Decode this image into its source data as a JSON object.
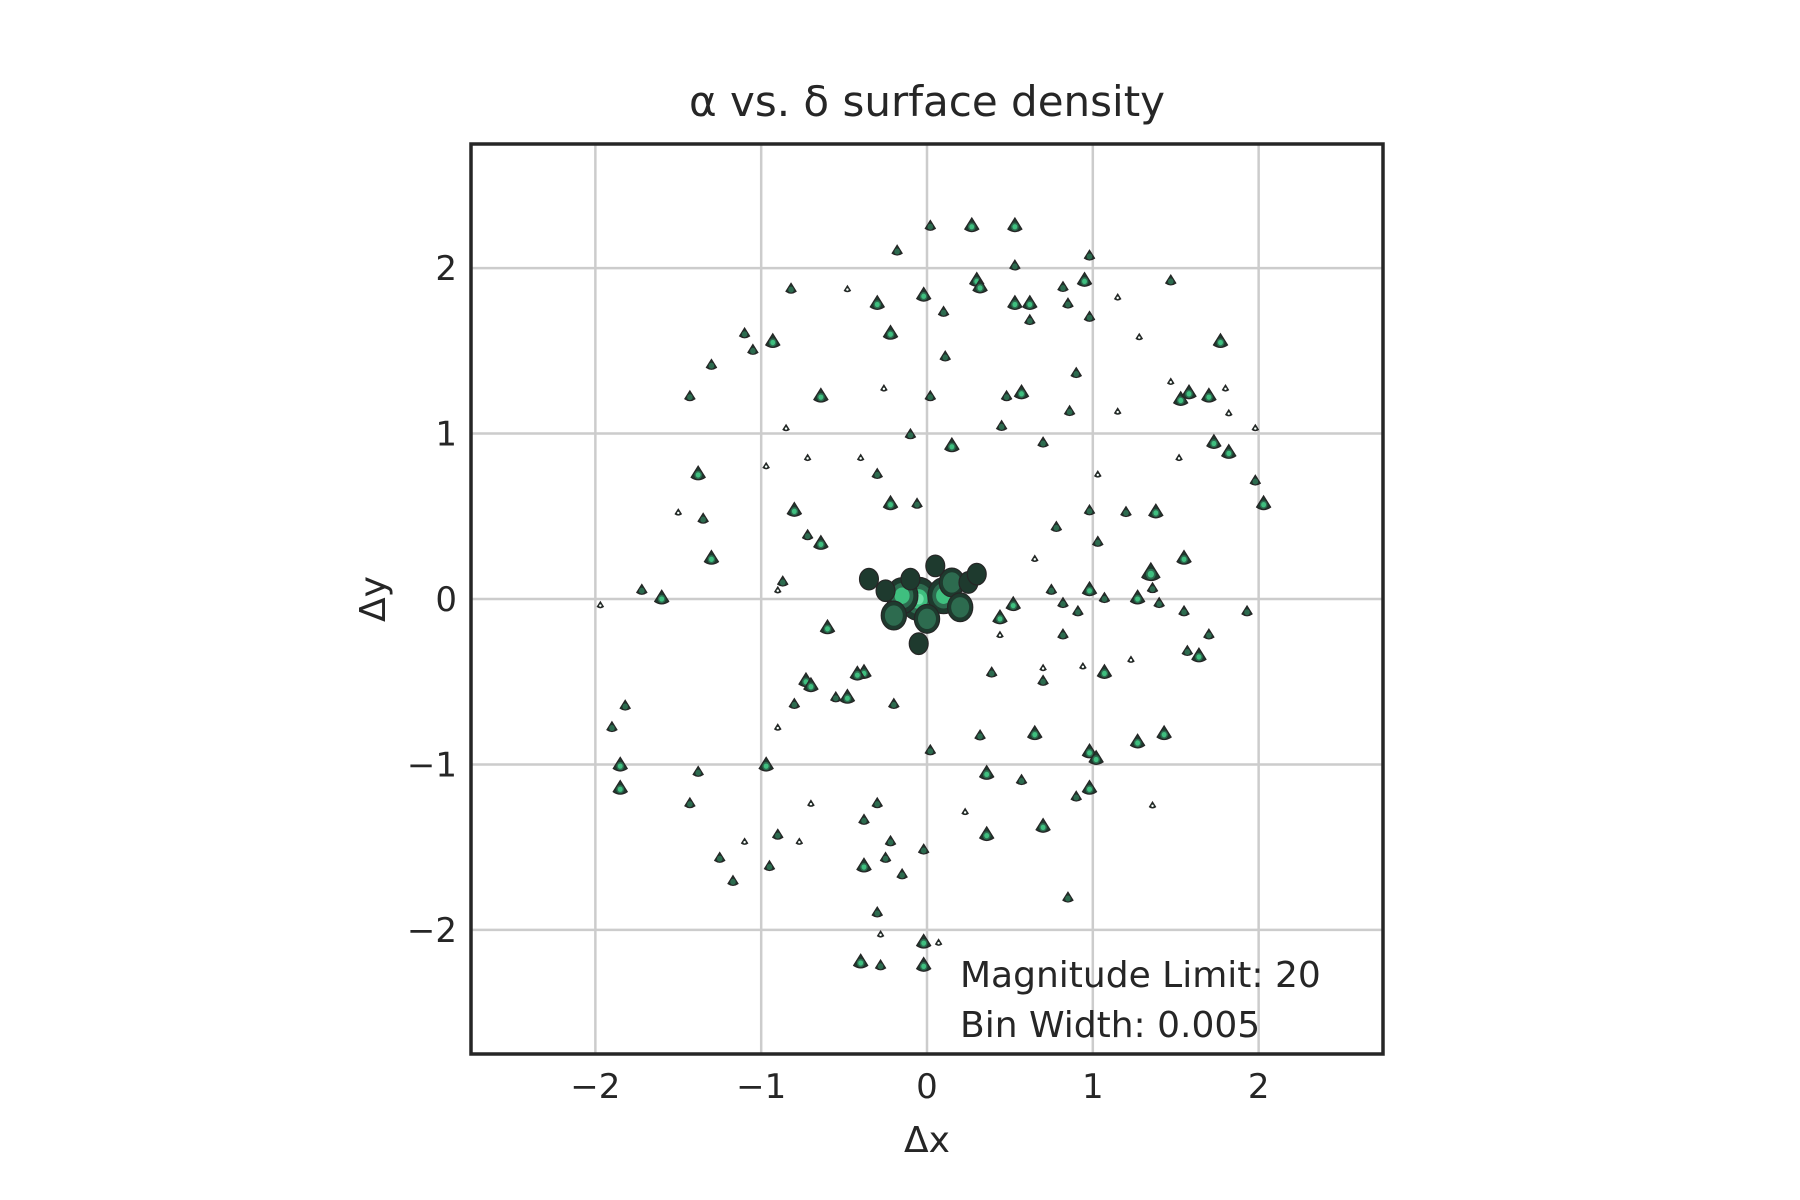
{
  "chart_data": {
    "type": "contour",
    "title": "α vs. δ surface density",
    "xlabel": "Δx",
    "ylabel": "Δy",
    "xlim": [
      -2.75,
      2.75
    ],
    "ylim": [
      -2.75,
      2.75
    ],
    "xticks": [
      -2,
      -1,
      0,
      1,
      2
    ],
    "yticks": [
      -2,
      -1,
      0,
      1,
      2
    ],
    "xtick_labels": [
      "−2",
      "−1",
      "0",
      "1",
      "2"
    ],
    "ytick_labels": [
      "−2",
      "−1",
      "0",
      "1",
      "2"
    ],
    "grid": true,
    "annotations": [
      "Magnitude Limit: 20",
      "Bin Width: 0.005"
    ],
    "colors": {
      "low": "#1e3a2e",
      "mid": "#2d6b4f",
      "high": "#3fbf7f",
      "peak": "#6ee0a8",
      "grid": "#cccccc",
      "frame": "#262626"
    },
    "central_clump": [
      {
        "x": -0.05,
        "y": 0.0,
        "level": 4
      },
      {
        "x": 0.1,
        "y": 0.02,
        "level": 3
      },
      {
        "x": -0.15,
        "y": 0.02,
        "level": 3
      },
      {
        "x": 0.15,
        "y": 0.1,
        "level": 2
      },
      {
        "x": -0.2,
        "y": -0.1,
        "level": 2
      },
      {
        "x": 0.0,
        "y": -0.12,
        "level": 2
      },
      {
        "x": 0.2,
        "y": -0.05,
        "level": 2
      },
      {
        "x": 0.25,
        "y": 0.1,
        "level": 1
      },
      {
        "x": -0.1,
        "y": 0.12,
        "level": 1
      },
      {
        "x": 0.05,
        "y": 0.2,
        "level": 1
      },
      {
        "x": -0.25,
        "y": 0.05,
        "level": 1
      },
      {
        "x": 0.3,
        "y": 0.15,
        "level": 1
      },
      {
        "x": -0.35,
        "y": 0.12,
        "level": 1
      },
      {
        "x": -0.05,
        "y": -0.27,
        "level": 1
      }
    ],
    "points": [
      {
        "x": 0.02,
        "y": 2.25,
        "s": 1
      },
      {
        "x": 0.27,
        "y": 2.25,
        "s": 2
      },
      {
        "x": 0.53,
        "y": 2.25,
        "s": 2
      },
      {
        "x": -0.18,
        "y": 2.1,
        "s": 1
      },
      {
        "x": 0.98,
        "y": 2.07,
        "s": 1
      },
      {
        "x": 0.53,
        "y": 2.01,
        "s": 1
      },
      {
        "x": 0.3,
        "y": 1.92,
        "s": 2
      },
      {
        "x": 0.32,
        "y": 1.88,
        "s": 2
      },
      {
        "x": 0.95,
        "y": 1.92,
        "s": 2
      },
      {
        "x": 1.47,
        "y": 1.92,
        "s": 1
      },
      {
        "x": 0.82,
        "y": 1.88,
        "s": 1
      },
      {
        "x": 0.98,
        "y": 1.7,
        "s": 1
      },
      {
        "x": -0.82,
        "y": 1.87,
        "s": 1
      },
      {
        "x": -0.48,
        "y": 1.87,
        "s": 0
      },
      {
        "x": -0.3,
        "y": 1.78,
        "s": 2
      },
      {
        "x": -0.02,
        "y": 1.83,
        "s": 2
      },
      {
        "x": 0.1,
        "y": 1.73,
        "s": 1
      },
      {
        "x": 0.53,
        "y": 1.78,
        "s": 2
      },
      {
        "x": 0.62,
        "y": 1.78,
        "s": 2
      },
      {
        "x": 0.85,
        "y": 1.78,
        "s": 1
      },
      {
        "x": 1.15,
        "y": 1.82,
        "s": 0
      },
      {
        "x": 1.28,
        "y": 1.58,
        "s": 0
      },
      {
        "x": -1.1,
        "y": 1.6,
        "s": 1
      },
      {
        "x": -1.05,
        "y": 1.5,
        "s": 1
      },
      {
        "x": -0.93,
        "y": 1.55,
        "s": 2
      },
      {
        "x": -0.22,
        "y": 1.6,
        "s": 2
      },
      {
        "x": 0.11,
        "y": 1.46,
        "s": 1
      },
      {
        "x": 0.62,
        "y": 1.68,
        "s": 1
      },
      {
        "x": 1.77,
        "y": 1.55,
        "s": 2
      },
      {
        "x": -1.3,
        "y": 1.41,
        "s": 1
      },
      {
        "x": -1.43,
        "y": 1.22,
        "s": 1
      },
      {
        "x": -0.64,
        "y": 1.22,
        "s": 2
      },
      {
        "x": -0.26,
        "y": 1.27,
        "s": 0
      },
      {
        "x": 0.02,
        "y": 1.22,
        "s": 1
      },
      {
        "x": 0.48,
        "y": 1.22,
        "s": 1
      },
      {
        "x": 0.57,
        "y": 1.24,
        "s": 2
      },
      {
        "x": 0.9,
        "y": 1.36,
        "s": 1
      },
      {
        "x": 1.47,
        "y": 1.31,
        "s": 0
      },
      {
        "x": 1.53,
        "y": 1.2,
        "s": 2
      },
      {
        "x": 1.58,
        "y": 1.24,
        "s": 2
      },
      {
        "x": 1.7,
        "y": 1.22,
        "s": 2
      },
      {
        "x": 1.8,
        "y": 1.27,
        "s": 0
      },
      {
        "x": 1.82,
        "y": 1.12,
        "s": 0
      },
      {
        "x": 0.86,
        "y": 1.13,
        "s": 1
      },
      {
        "x": 1.15,
        "y": 1.13,
        "s": 0
      },
      {
        "x": -0.85,
        "y": 1.03,
        "s": 0
      },
      {
        "x": -0.1,
        "y": 0.99,
        "s": 1
      },
      {
        "x": 0.15,
        "y": 0.92,
        "s": 2
      },
      {
        "x": 0.45,
        "y": 1.04,
        "s": 1
      },
      {
        "x": 0.7,
        "y": 0.94,
        "s": 1
      },
      {
        "x": 1.73,
        "y": 0.94,
        "s": 2
      },
      {
        "x": 1.82,
        "y": 0.88,
        "s": 2
      },
      {
        "x": 1.98,
        "y": 1.03,
        "s": 0
      },
      {
        "x": -1.38,
        "y": 0.75,
        "s": 2
      },
      {
        "x": -0.97,
        "y": 0.8,
        "s": 0
      },
      {
        "x": -0.72,
        "y": 0.85,
        "s": 0
      },
      {
        "x": -0.4,
        "y": 0.85,
        "s": 0
      },
      {
        "x": -0.3,
        "y": 0.75,
        "s": 1
      },
      {
        "x": 1.52,
        "y": 0.85,
        "s": 0
      },
      {
        "x": 1.03,
        "y": 0.75,
        "s": 0
      },
      {
        "x": 1.98,
        "y": 0.71,
        "s": 1
      },
      {
        "x": 2.03,
        "y": 0.57,
        "s": 2
      },
      {
        "x": -1.5,
        "y": 0.52,
        "s": 0
      },
      {
        "x": -0.8,
        "y": 0.53,
        "s": 2
      },
      {
        "x": -0.22,
        "y": 0.57,
        "s": 2
      },
      {
        "x": -0.06,
        "y": 0.57,
        "s": 1
      },
      {
        "x": 0.98,
        "y": 0.53,
        "s": 1
      },
      {
        "x": 1.2,
        "y": 0.52,
        "s": 1
      },
      {
        "x": 1.38,
        "y": 0.52,
        "s": 2
      },
      {
        "x": -1.35,
        "y": 0.48,
        "s": 1
      },
      {
        "x": -0.72,
        "y": 0.38,
        "s": 1
      },
      {
        "x": -0.64,
        "y": 0.33,
        "s": 2
      },
      {
        "x": 0.78,
        "y": 0.43,
        "s": 1
      },
      {
        "x": 1.03,
        "y": 0.34,
        "s": 1
      },
      {
        "x": -1.3,
        "y": 0.24,
        "s": 2
      },
      {
        "x": 0.65,
        "y": 0.24,
        "s": 0
      },
      {
        "x": 1.55,
        "y": 0.24,
        "s": 2
      },
      {
        "x": -1.72,
        "y": 0.05,
        "s": 1
      },
      {
        "x": -1.6,
        "y": 0.0,
        "s": 2
      },
      {
        "x": -1.97,
        "y": -0.04,
        "s": 0
      },
      {
        "x": -0.87,
        "y": 0.1,
        "s": 1
      },
      {
        "x": -0.9,
        "y": 0.05,
        "s": 0
      },
      {
        "x": 0.75,
        "y": 0.05,
        "s": 1
      },
      {
        "x": 0.98,
        "y": 0.05,
        "s": 2
      },
      {
        "x": 1.07,
        "y": 0.0,
        "s": 1
      },
      {
        "x": 1.35,
        "y": 0.15,
        "s": 3
      },
      {
        "x": 1.36,
        "y": 0.06,
        "s": 1
      },
      {
        "x": 1.27,
        "y": 0.0,
        "s": 2
      },
      {
        "x": 1.4,
        "y": -0.03,
        "s": 1
      },
      {
        "x": 1.55,
        "y": -0.08,
        "s": 1
      },
      {
        "x": 1.93,
        "y": -0.08,
        "s": 1
      },
      {
        "x": 0.52,
        "y": -0.04,
        "s": 2
      },
      {
        "x": 0.82,
        "y": -0.03,
        "s": 1
      },
      {
        "x": 0.91,
        "y": -0.08,
        "s": 1
      },
      {
        "x": 0.44,
        "y": -0.12,
        "s": 2
      },
      {
        "x": 0.44,
        "y": -0.22,
        "s": 0
      },
      {
        "x": 0.82,
        "y": -0.22,
        "s": 1
      },
      {
        "x": 1.7,
        "y": -0.22,
        "s": 1
      },
      {
        "x": 1.57,
        "y": -0.32,
        "s": 1
      },
      {
        "x": 1.64,
        "y": -0.35,
        "s": 2
      },
      {
        "x": 1.23,
        "y": -0.37,
        "s": 0
      },
      {
        "x": -0.6,
        "y": -0.18,
        "s": 2
      },
      {
        "x": -0.38,
        "y": -0.45,
        "s": 2
      },
      {
        "x": -0.42,
        "y": -0.46,
        "s": 2
      },
      {
        "x": 0.39,
        "y": -0.45,
        "s": 1
      },
      {
        "x": 0.7,
        "y": -0.42,
        "s": 0
      },
      {
        "x": 0.7,
        "y": -0.5,
        "s": 1
      },
      {
        "x": 0.94,
        "y": -0.41,
        "s": 0
      },
      {
        "x": 1.07,
        "y": -0.45,
        "s": 2
      },
      {
        "x": -1.82,
        "y": -0.65,
        "s": 1
      },
      {
        "x": -1.9,
        "y": -0.78,
        "s": 1
      },
      {
        "x": -0.73,
        "y": -0.5,
        "s": 2
      },
      {
        "x": -0.7,
        "y": -0.53,
        "s": 2
      },
      {
        "x": -0.55,
        "y": -0.6,
        "s": 1
      },
      {
        "x": -0.48,
        "y": -0.6,
        "s": 2
      },
      {
        "x": -0.8,
        "y": -0.64,
        "s": 1
      },
      {
        "x": -0.2,
        "y": -0.64,
        "s": 1
      },
      {
        "x": -0.9,
        "y": -0.78,
        "s": 0
      },
      {
        "x": 0.32,
        "y": -0.83,
        "s": 1
      },
      {
        "x": 0.65,
        "y": -0.82,
        "s": 2
      },
      {
        "x": 1.27,
        "y": -0.87,
        "s": 2
      },
      {
        "x": 1.43,
        "y": -0.82,
        "s": 2
      },
      {
        "x": 0.02,
        "y": -0.92,
        "s": 1
      },
      {
        "x": 0.98,
        "y": -0.93,
        "s": 2
      },
      {
        "x": 1.02,
        "y": -0.97,
        "s": 2
      },
      {
        "x": -1.85,
        "y": -1.01,
        "s": 2
      },
      {
        "x": -1.38,
        "y": -1.05,
        "s": 1
      },
      {
        "x": -0.97,
        "y": -1.01,
        "s": 2
      },
      {
        "x": 0.36,
        "y": -1.06,
        "s": 2
      },
      {
        "x": -1.85,
        "y": -1.15,
        "s": 2
      },
      {
        "x": 0.57,
        "y": -1.1,
        "s": 1
      },
      {
        "x": 0.98,
        "y": -1.15,
        "s": 2
      },
      {
        "x": 0.9,
        "y": -1.2,
        "s": 1
      },
      {
        "x": -1.43,
        "y": -1.24,
        "s": 1
      },
      {
        "x": -0.7,
        "y": -1.24,
        "s": 0
      },
      {
        "x": -0.3,
        "y": -1.24,
        "s": 1
      },
      {
        "x": 1.36,
        "y": -1.25,
        "s": 0
      },
      {
        "x": -0.38,
        "y": -1.34,
        "s": 1
      },
      {
        "x": 0.23,
        "y": -1.29,
        "s": 0
      },
      {
        "x": 0.7,
        "y": -1.38,
        "s": 2
      },
      {
        "x": -0.9,
        "y": -1.43,
        "s": 1
      },
      {
        "x": -1.1,
        "y": -1.47,
        "s": 0
      },
      {
        "x": -0.77,
        "y": -1.47,
        "s": 0
      },
      {
        "x": 0.36,
        "y": -1.43,
        "s": 2
      },
      {
        "x": -1.25,
        "y": -1.57,
        "s": 1
      },
      {
        "x": -0.22,
        "y": -1.47,
        "s": 1
      },
      {
        "x": -0.25,
        "y": -1.57,
        "s": 1
      },
      {
        "x": -0.02,
        "y": -1.52,
        "s": 1
      },
      {
        "x": -0.95,
        "y": -1.62,
        "s": 1
      },
      {
        "x": -0.38,
        "y": -1.62,
        "s": 2
      },
      {
        "x": -0.15,
        "y": -1.67,
        "s": 1
      },
      {
        "x": -1.17,
        "y": -1.71,
        "s": 1
      },
      {
        "x": 0.85,
        "y": -1.81,
        "s": 1
      },
      {
        "x": -0.3,
        "y": -1.9,
        "s": 1
      },
      {
        "x": -0.28,
        "y": -2.03,
        "s": 0
      },
      {
        "x": -0.02,
        "y": -2.08,
        "s": 2
      },
      {
        "x": 0.07,
        "y": -2.08,
        "s": 0
      },
      {
        "x": -0.4,
        "y": -2.2,
        "s": 2
      },
      {
        "x": -0.28,
        "y": -2.22,
        "s": 1
      },
      {
        "x": -0.02,
        "y": -2.22,
        "s": 2
      }
    ]
  }
}
